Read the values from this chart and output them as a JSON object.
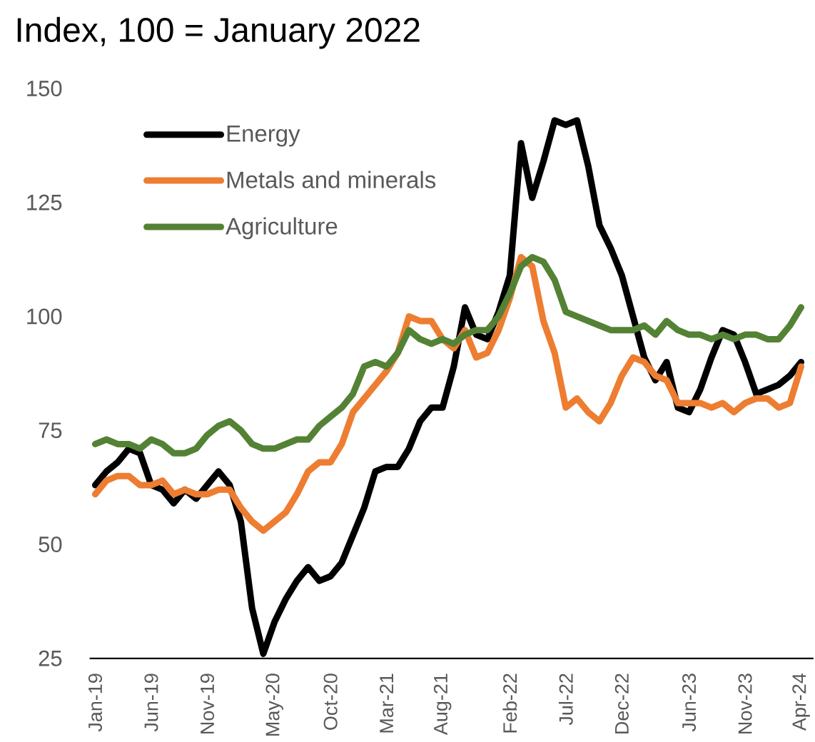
{
  "chart_data": {
    "type": "line",
    "title": "Index, 100  = January 2022",
    "categories": [
      "Jan-19",
      null,
      null,
      null,
      null,
      "Jun-19",
      null,
      null,
      null,
      null,
      "Nov-19",
      null,
      null,
      null,
      null,
      null,
      "May-20",
      null,
      null,
      null,
      null,
      "Oct-20",
      null,
      null,
      null,
      null,
      "Mar-21",
      null,
      null,
      null,
      null,
      "Aug-21",
      null,
      null,
      null,
      null,
      null,
      "Feb-22",
      null,
      null,
      null,
      null,
      "Jul-22",
      null,
      null,
      null,
      null,
      "Dec-22",
      null,
      null,
      null,
      null,
      null,
      "Jun-23",
      null,
      null,
      null,
      null,
      "Nov-23",
      null,
      null,
      null,
      null,
      "Apr-24"
    ],
    "series": [
      {
        "name": "Energy",
        "color": "#000000",
        "values": [
          63,
          66,
          68,
          71,
          70,
          63,
          62,
          59,
          62,
          60,
          63,
          66,
          63,
          55,
          36,
          26,
          33,
          38,
          42,
          45,
          42,
          43,
          46,
          52,
          58,
          66,
          67,
          67,
          71,
          77,
          80,
          80,
          89,
          102,
          96,
          95,
          101,
          109,
          138,
          126,
          134,
          143,
          142,
          143,
          133,
          120,
          115,
          109,
          100,
          91,
          86,
          90,
          80,
          79,
          84,
          91,
          97,
          96,
          90,
          83,
          84,
          85,
          87,
          90
        ]
      },
      {
        "name": "Metals and minerals",
        "color": "#ed7d31",
        "values": [
          61,
          64,
          65,
          65,
          63,
          63,
          64,
          61,
          62,
          61,
          61,
          62,
          62,
          58,
          55,
          53,
          55,
          57,
          61,
          66,
          68,
          68,
          72,
          79,
          82,
          85,
          88,
          92,
          100,
          99,
          99,
          95,
          93,
          97,
          91,
          92,
          97,
          104,
          113,
          111,
          99,
          92,
          80,
          82,
          79,
          77,
          81,
          87,
          91,
          90,
          87,
          86,
          81,
          81,
          81,
          80,
          81,
          79,
          81,
          82,
          82,
          80,
          81,
          89
        ]
      },
      {
        "name": "Agriculture",
        "color": "#548235",
        "values": [
          72,
          73,
          72,
          72,
          71,
          73,
          72,
          70,
          70,
          71,
          74,
          76,
          77,
          75,
          72,
          71,
          71,
          72,
          73,
          73,
          76,
          78,
          80,
          83,
          89,
          90,
          89,
          92,
          97,
          95,
          94,
          95,
          94,
          96,
          97,
          97,
          100,
          105,
          111,
          113,
          112,
          108,
          101,
          100,
          99,
          98,
          97,
          97,
          97,
          98,
          96,
          99,
          97,
          96,
          96,
          95,
          96,
          95,
          96,
          96,
          95,
          95,
          98,
          102
        ]
      }
    ],
    "ylim": [
      25,
      150
    ],
    "yticks": [
      25,
      50,
      75,
      100,
      125,
      150
    ],
    "legend": "top left",
    "line_style": "solid"
  }
}
